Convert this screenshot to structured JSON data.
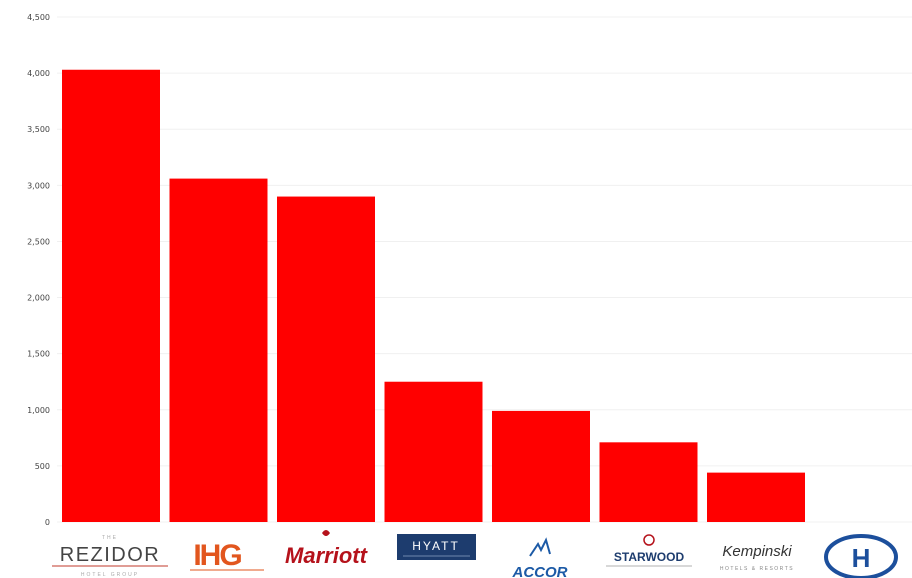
{
  "chart_data": {
    "type": "bar",
    "title": "",
    "xlabel": "",
    "ylabel": "",
    "ylim": [
      0,
      4500
    ],
    "grid": true,
    "bar_color": "#ff0000",
    "y_ticks": [
      {
        "value": 0,
        "label": "0"
      },
      {
        "value": 500,
        "label": "500"
      },
      {
        "value": 1000,
        "label": "1,000"
      },
      {
        "value": 1500,
        "label": "1,500"
      },
      {
        "value": 2000,
        "label": "2,000"
      },
      {
        "value": 2500,
        "label": "2,500"
      },
      {
        "value": 3000,
        "label": "3,000"
      },
      {
        "value": 3500,
        "label": "3,500"
      },
      {
        "value": 4000,
        "label": "4,000"
      },
      {
        "value": 4500,
        "label": "4,500"
      }
    ],
    "categories": [
      "Rezidor Hotel Group",
      "IHG",
      "Marriott",
      "Hyatt",
      "Accor",
      "Starwood",
      "Kempinski",
      "Hilton"
    ],
    "values": [
      4030,
      3060,
      2900,
      1250,
      990,
      710,
      440,
      0
    ]
  },
  "logos": {
    "rezidor": {
      "main": "REZIDOR",
      "top": "THE",
      "bottom": "HOTEL GROUP"
    },
    "ihg": {
      "main": "IHG",
      "color": "#e2561e"
    },
    "marriott": {
      "main": "Marriott",
      "color": "#b5121b"
    },
    "hyatt": {
      "main": "HYATT",
      "color": "#1d3c6e"
    },
    "accor": {
      "main": "ACCOR",
      "color": "#1c5aa6"
    },
    "starwood": {
      "main": "STARWOOD",
      "color": "#1d3c6e"
    },
    "kempinski": {
      "main": "Kempinski",
      "bottom": "HOTELS & RESORTS"
    },
    "hilton": {
      "main": "H",
      "color": "#1c4f9c"
    }
  }
}
